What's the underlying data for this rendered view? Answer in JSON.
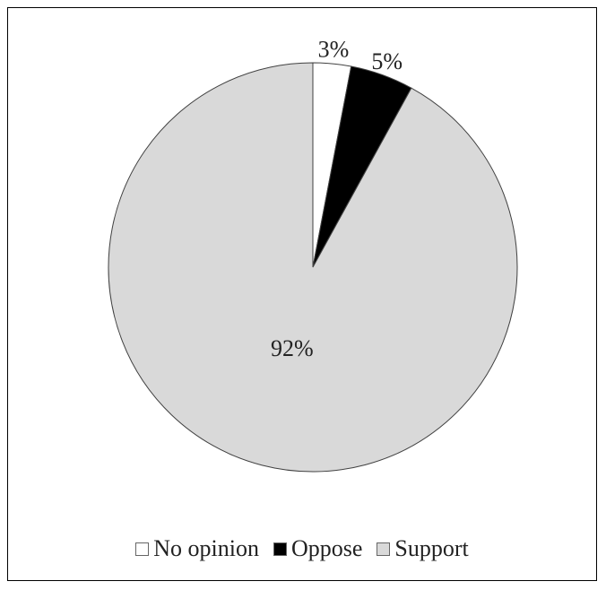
{
  "chart_data": {
    "type": "pie",
    "title": "",
    "slices": [
      {
        "label": "No opinion",
        "value": 3,
        "display": "3%",
        "color": "#ffffff"
      },
      {
        "label": "Oppose",
        "value": 5,
        "display": "5%",
        "color": "#000000"
      },
      {
        "label": "Support",
        "value": 92,
        "display": "92%",
        "color": "#d9d9d9"
      }
    ],
    "start_angle": "12 o'clock",
    "direction": "clockwise",
    "legend_position": "bottom"
  }
}
